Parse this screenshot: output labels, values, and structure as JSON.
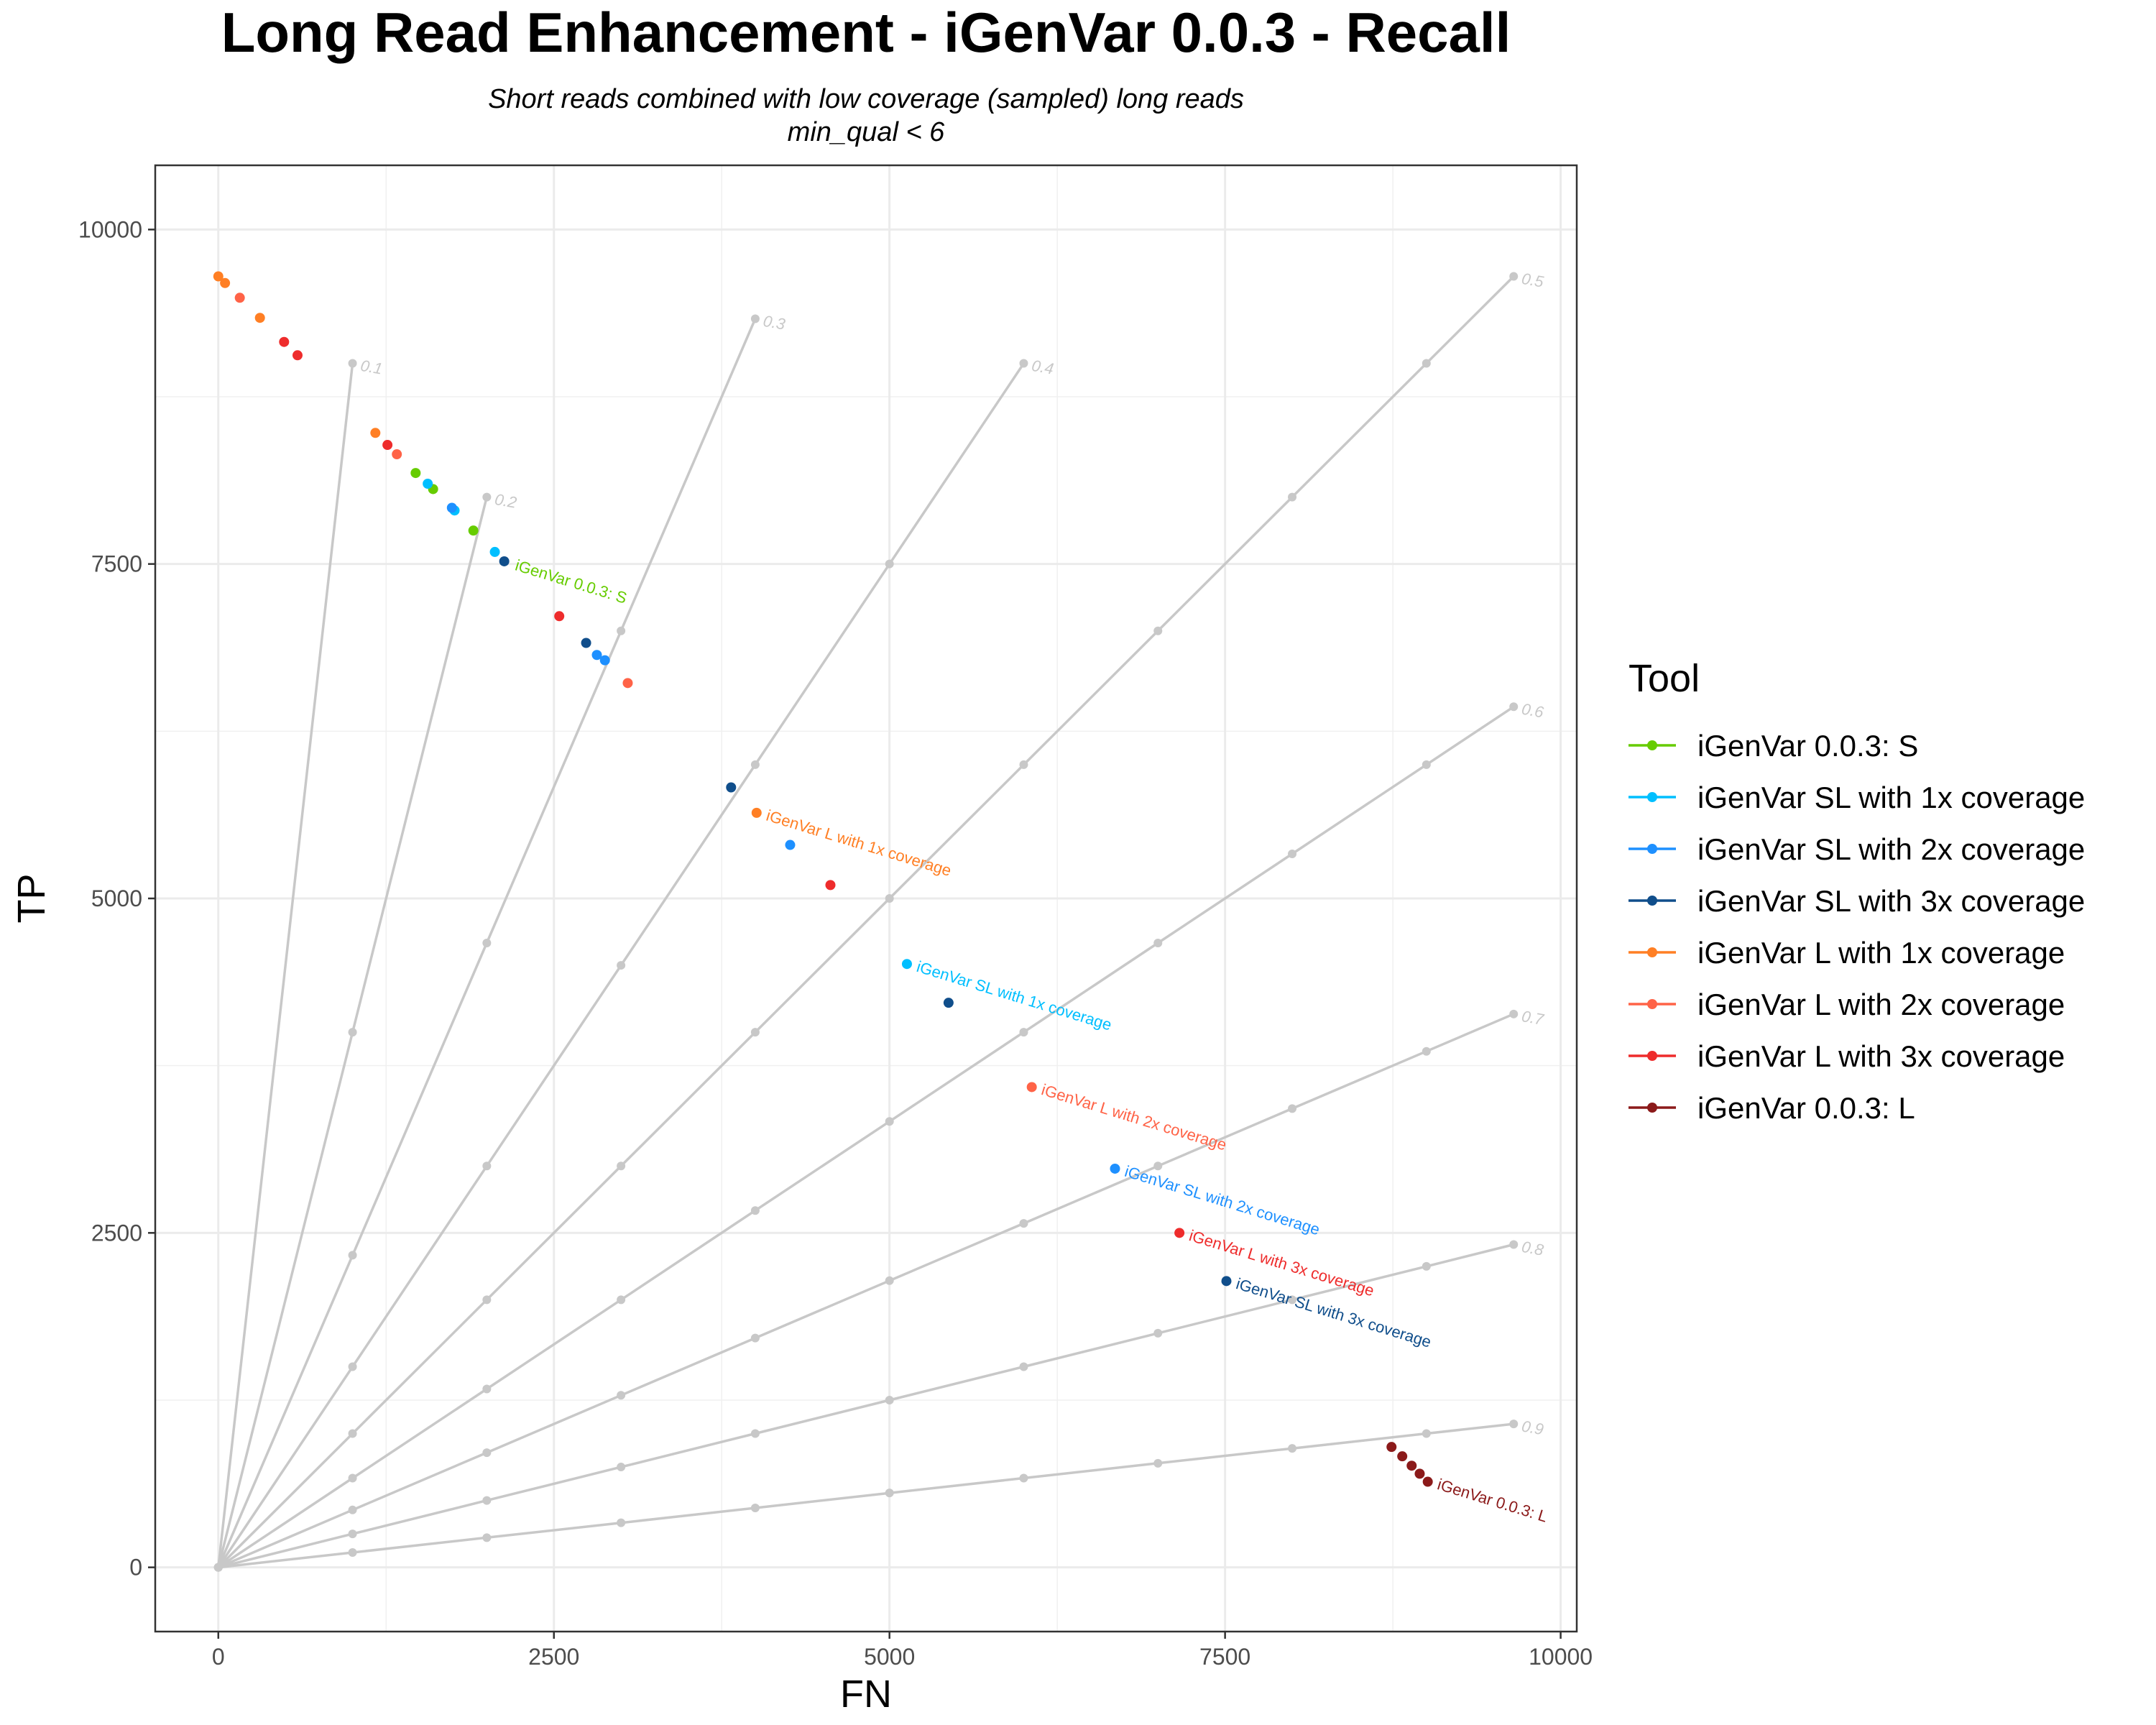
{
  "chart_data": {
    "type": "scatter",
    "title": "Long Read Enhancement - iGenVar 0.0.3 - Recall",
    "subtitle_lines": [
      "Short reads combined with low coverage (sampled) long reads",
      "min_qual < 6"
    ],
    "xlabel": "FN",
    "ylabel": "TP",
    "xlim": [
      -470,
      10120
    ],
    "ylim": [
      -480,
      10480
    ],
    "x_ticks": [
      0,
      2500,
      5000,
      7500,
      10000
    ],
    "x_tick_labels": [
      "0",
      "2500",
      "5000",
      "7500",
      "10000"
    ],
    "y_ticks": [
      0,
      2500,
      5000,
      7500,
      10000
    ],
    "y_tick_labels": [
      "0",
      "2500",
      "5000",
      "7500",
      "10000"
    ],
    "grid": true,
    "legend_title": "Tool",
    "legend_position": "right",
    "reference_lines": [
      {
        "label": "0.1",
        "points": [
          [
            0,
            0
          ],
          [
            1000,
            9000
          ]
        ]
      },
      {
        "label": "0.2",
        "points": [
          [
            0,
            0
          ],
          [
            1000,
            4000
          ],
          [
            2000,
            8000
          ]
        ]
      },
      {
        "label": "0.3",
        "points": [
          [
            0,
            0
          ],
          [
            1000,
            2333
          ],
          [
            2000,
            4667
          ],
          [
            3000,
            7000
          ],
          [
            4000,
            9333
          ]
        ]
      },
      {
        "label": "0.4",
        "points": [
          [
            0,
            0
          ],
          [
            1000,
            1500
          ],
          [
            2000,
            3000
          ],
          [
            3000,
            4500
          ],
          [
            4000,
            6000
          ],
          [
            5000,
            7500
          ],
          [
            6000,
            9000
          ]
        ]
      },
      {
        "label": "0.5",
        "points": [
          [
            0,
            0
          ],
          [
            1000,
            1000
          ],
          [
            2000,
            2000
          ],
          [
            3000,
            3000
          ],
          [
            4000,
            4000
          ],
          [
            5000,
            5000
          ],
          [
            6000,
            6000
          ],
          [
            7000,
            7000
          ],
          [
            8000,
            8000
          ],
          [
            9000,
            9000
          ],
          [
            9650,
            9650
          ]
        ]
      },
      {
        "label": "0.6",
        "points": [
          [
            0,
            0
          ],
          [
            1000,
            667
          ],
          [
            2000,
            1333
          ],
          [
            3000,
            2000
          ],
          [
            4000,
            2667
          ],
          [
            5000,
            3333
          ],
          [
            6000,
            4000
          ],
          [
            7000,
            4667
          ],
          [
            8000,
            5333
          ],
          [
            9000,
            6000
          ],
          [
            9650,
            6433
          ]
        ]
      },
      {
        "label": "0.7",
        "points": [
          [
            0,
            0
          ],
          [
            1000,
            429
          ],
          [
            2000,
            857
          ],
          [
            3000,
            1286
          ],
          [
            4000,
            1714
          ],
          [
            5000,
            2143
          ],
          [
            6000,
            2571
          ],
          [
            7000,
            3000
          ],
          [
            8000,
            3429
          ],
          [
            9000,
            3857
          ],
          [
            9650,
            4136
          ]
        ]
      },
      {
        "label": "0.8",
        "points": [
          [
            0,
            0
          ],
          [
            1000,
            250
          ],
          [
            2000,
            500
          ],
          [
            3000,
            750
          ],
          [
            4000,
            1000
          ],
          [
            5000,
            1250
          ],
          [
            6000,
            1500
          ],
          [
            7000,
            1750
          ],
          [
            8000,
            2000
          ],
          [
            9000,
            2250
          ],
          [
            9650,
            2413
          ]
        ]
      },
      {
        "label": "0.9",
        "points": [
          [
            0,
            0
          ],
          [
            1000,
            111
          ],
          [
            2000,
            222
          ],
          [
            3000,
            333
          ],
          [
            4000,
            444
          ],
          [
            5000,
            556
          ],
          [
            6000,
            667
          ],
          [
            7000,
            778
          ],
          [
            8000,
            889
          ],
          [
            9000,
            1000
          ],
          [
            9650,
            1072
          ]
        ]
      }
    ],
    "series": [
      {
        "name": "iGenVar 0.0.3: S",
        "color": "#66cc00",
        "points": [
          [
            1470,
            8180
          ],
          [
            1600,
            8060
          ],
          [
            1900,
            7750
          ]
        ],
        "label": "iGenVar 0.0.3: S",
        "label_at": [
          2140,
          7510
        ]
      },
      {
        "name": "iGenVar SL with 1x coverage",
        "color": "#00bfff",
        "points": [
          [
            1560,
            8100
          ],
          [
            1760,
            7900
          ],
          [
            2060,
            7590
          ],
          [
            5130,
            4510
          ]
        ],
        "label": "iGenVar SL with 1x coverage",
        "label_at": [
          5130,
          4510
        ]
      },
      {
        "name": "iGenVar SL with 2x coverage",
        "color": "#1e90ff",
        "points": [
          [
            1740,
            7920
          ],
          [
            2820,
            6820
          ],
          [
            2880,
            6780
          ],
          [
            4260,
            5400
          ],
          [
            6680,
            2980
          ]
        ],
        "label": "iGenVar SL with 2x coverage",
        "label_at": [
          6680,
          2980
        ]
      },
      {
        "name": "iGenVar SL with 3x coverage",
        "color": "#104e8b",
        "points": [
          [
            2130,
            7520
          ],
          [
            2740,
            6910
          ],
          [
            3820,
            5830
          ],
          [
            5440,
            4220
          ],
          [
            7510,
            2140
          ]
        ],
        "label": "iGenVar SL with 3x coverage",
        "label_at": [
          7510,
          2140
        ]
      },
      {
        "name": "iGenVar L with 1x coverage",
        "color": "#ff7f24",
        "points": [
          [
            0,
            9650
          ],
          [
            50,
            9600
          ],
          [
            310,
            9340
          ],
          [
            1170,
            8480
          ],
          [
            4010,
            5640
          ]
        ],
        "label": "iGenVar L with 1x coverage",
        "label_at": [
          4010,
          5640
        ]
      },
      {
        "name": "iGenVar L with 2x coverage",
        "color": "#ff6347",
        "points": [
          [
            160,
            9490
          ],
          [
            1330,
            8320
          ],
          [
            3050,
            6610
          ],
          [
            6060,
            3590
          ]
        ],
        "label": "iGenVar L with 2x coverage",
        "label_at": [
          6060,
          3590
        ]
      },
      {
        "name": "iGenVar L with 3x coverage",
        "color": "#ee2c2c",
        "points": [
          [
            490,
            9160
          ],
          [
            590,
            9060
          ],
          [
            1260,
            8390
          ],
          [
            2540,
            7110
          ],
          [
            4560,
            5100
          ],
          [
            7160,
            2500
          ]
        ],
        "label": "iGenVar L with 3x coverage",
        "label_at": [
          7160,
          2500
        ]
      },
      {
        "name": "iGenVar 0.0.3: L",
        "color": "#8b1a1a",
        "points": [
          [
            8740,
            900
          ],
          [
            8820,
            830
          ],
          [
            8890,
            760
          ],
          [
            8950,
            700
          ],
          [
            9010,
            640
          ]
        ],
        "label": "iGenVar 0.0.3: L",
        "label_at": [
          9010,
          640
        ]
      }
    ]
  }
}
